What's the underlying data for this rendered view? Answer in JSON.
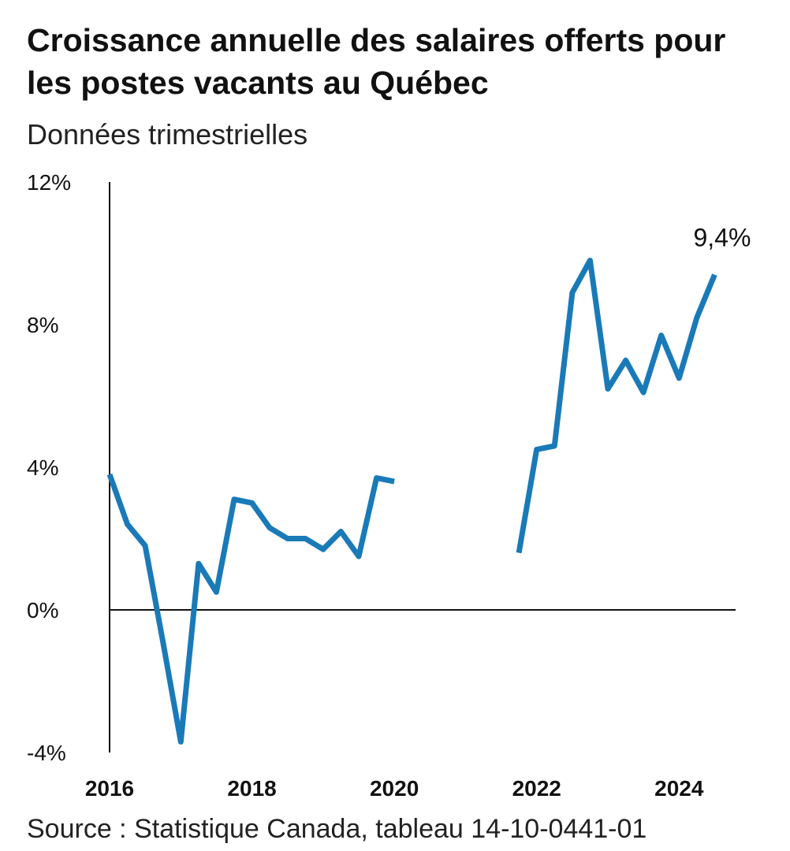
{
  "chart_data": {
    "type": "line",
    "title": "Croissance annuelle des salaires offerts pour les postes vacants au Québec",
    "subtitle": "Données trimestrielles",
    "source": "Source : Statistique Canada, tableau 14-10-0441-01",
    "ylim": [
      -4,
      12
    ],
    "xlim": [
      2016,
      2024.75
    ],
    "y_ticks": [
      {
        "value": 12,
        "label": "12%"
      },
      {
        "value": 8,
        "label": "8%"
      },
      {
        "value": 4,
        "label": "4%"
      },
      {
        "value": 0,
        "label": "0%"
      },
      {
        "value": -4,
        "label": "-4%"
      }
    ],
    "x_ticks": [
      {
        "value": 2016,
        "label": "2016"
      },
      {
        "value": 2018,
        "label": "2018"
      },
      {
        "value": 2020,
        "label": "2020"
      },
      {
        "value": 2022,
        "label": "2022"
      },
      {
        "value": 2024,
        "label": "2024"
      }
    ],
    "grid": false,
    "legend": "none",
    "series_color": "#1a7ab8",
    "series": [
      {
        "segments": [
          [
            {
              "x": 2016.0,
              "y": 3.8
            },
            {
              "x": 2016.25,
              "y": 2.4
            },
            {
              "x": 2016.5,
              "y": 1.8
            },
            {
              "x": 2016.75,
              "y": -0.9
            },
            {
              "x": 2017.0,
              "y": -3.7
            },
            {
              "x": 2017.25,
              "y": 1.3
            },
            {
              "x": 2017.5,
              "y": 0.5
            },
            {
              "x": 2017.75,
              "y": 3.1
            },
            {
              "x": 2018.0,
              "y": 3.0
            },
            {
              "x": 2018.25,
              "y": 2.3
            },
            {
              "x": 2018.5,
              "y": 2.0
            },
            {
              "x": 2018.75,
              "y": 2.0
            },
            {
              "x": 2019.0,
              "y": 1.7
            },
            {
              "x": 2019.25,
              "y": 2.2
            },
            {
              "x": 2019.5,
              "y": 1.5
            },
            {
              "x": 2019.75,
              "y": 3.7
            },
            {
              "x": 2020.0,
              "y": 3.6
            }
          ],
          [
            {
              "x": 2021.75,
              "y": 1.6
            },
            {
              "x": 2022.0,
              "y": 4.5
            },
            {
              "x": 2022.25,
              "y": 4.6
            },
            {
              "x": 2022.5,
              "y": 8.9
            },
            {
              "x": 2022.75,
              "y": 9.8
            },
            {
              "x": 2023.0,
              "y": 6.2
            },
            {
              "x": 2023.25,
              "y": 7.0
            },
            {
              "x": 2023.5,
              "y": 6.1
            },
            {
              "x": 2023.75,
              "y": 7.7
            },
            {
              "x": 2024.0,
              "y": 6.5
            },
            {
              "x": 2024.25,
              "y": 8.2
            },
            {
              "x": 2024.5,
              "y": 9.4
            }
          ]
        ]
      }
    ],
    "annotations": [
      {
        "x": 2024.5,
        "y": 9.4,
        "label": "9,4%"
      }
    ]
  }
}
